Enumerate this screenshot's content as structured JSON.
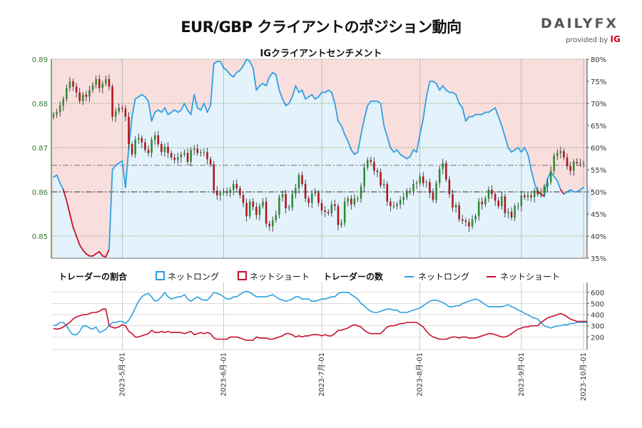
{
  "header": {
    "title": "EUR/GBP クライアントのポジション動向",
    "subtitle": "IGクライアントセンチメント",
    "brand": "DAILY",
    "brand_fx": "FX",
    "brand_sub": "provided by",
    "brand_ig": "IG"
  },
  "legend": {
    "ratio_title": "トレーダーの割合",
    "ratio_long": "ネットロング",
    "ratio_short": "ネットショート",
    "count_title": "トレーダーの数",
    "count_long": "ネットロング",
    "count_short": "ネットショート"
  },
  "colors": {
    "long": "#2f9fe0",
    "short": "#c8102e",
    "bull": "#2e8b2e",
    "bear": "#b1121c",
    "long_fill": "#e3f2fb",
    "short_fill": "#f9dede",
    "grid": "#3a8a3a"
  },
  "chart_data": [
    {
      "type": "candlestick",
      "title": "IGクライアントセンチメント",
      "y_left": {
        "min": 0.845,
        "max": 0.89,
        "ticks": [
          "0.89",
          "0.88",
          "0.87",
          "0.86",
          "0.85"
        ],
        "tick_values": [
          0.89,
          0.88,
          0.87,
          0.86,
          0.85
        ]
      },
      "y_right": {
        "min": 35,
        "max": 80,
        "ticks": [
          "80%",
          "75%",
          "70%",
          "65%",
          "60%",
          "55%",
          "50%",
          "45%",
          "40%",
          "35%"
        ],
        "tick_values": [
          80,
          75,
          70,
          65,
          60,
          55,
          50,
          45,
          40,
          35
        ]
      },
      "price_closes": [
        0.8775,
        0.878,
        0.8795,
        0.881,
        0.8835,
        0.885,
        0.8838,
        0.8825,
        0.8805,
        0.882,
        0.8815,
        0.883,
        0.8842,
        0.8855,
        0.8835,
        0.8845,
        0.8855,
        0.8838,
        0.877,
        0.8782,
        0.879,
        0.8788,
        0.877,
        0.8708,
        0.8685,
        0.8718,
        0.8722,
        0.8712,
        0.8695,
        0.8688,
        0.8718,
        0.8728,
        0.8708,
        0.869,
        0.8702,
        0.8688,
        0.8678,
        0.8672,
        0.8678,
        0.8685,
        0.8688,
        0.8668,
        0.8695,
        0.8698,
        0.8688,
        0.869,
        0.869,
        0.8674,
        0.8662,
        0.8603,
        0.8592,
        0.8598,
        0.86,
        0.8598,
        0.8605,
        0.8618,
        0.8608,
        0.8593,
        0.8575,
        0.8545,
        0.8578,
        0.8566,
        0.8548,
        0.8568,
        0.8578,
        0.8528,
        0.8522,
        0.8536,
        0.8548,
        0.8588,
        0.8595,
        0.8563,
        0.8565,
        0.8595,
        0.8608,
        0.8638,
        0.8618,
        0.8585,
        0.8575,
        0.8596,
        0.8598,
        0.8575,
        0.8558,
        0.8555,
        0.8552,
        0.8572,
        0.8568,
        0.8525,
        0.853,
        0.8578,
        0.8585,
        0.8572,
        0.8585,
        0.8585,
        0.8612,
        0.8655,
        0.8672,
        0.8668,
        0.8648,
        0.8645,
        0.8615,
        0.8618,
        0.8578,
        0.8568,
        0.8568,
        0.8572,
        0.8582,
        0.8588,
        0.8602,
        0.8602,
        0.8618,
        0.862,
        0.8635,
        0.862,
        0.8622,
        0.8598,
        0.8582,
        0.862,
        0.8652,
        0.8665,
        0.8628,
        0.8595,
        0.8565,
        0.857,
        0.8538,
        0.8535,
        0.8532,
        0.8522,
        0.8538,
        0.8545,
        0.8578,
        0.8572,
        0.8585,
        0.8605,
        0.8595,
        0.858,
        0.8568,
        0.859,
        0.8552,
        0.8555,
        0.8542,
        0.8568,
        0.8568,
        0.8592,
        0.8588,
        0.8592,
        0.8588,
        0.8603,
        0.8595,
        0.8598,
        0.8612,
        0.8622,
        0.8648,
        0.8682,
        0.8688,
        0.8692,
        0.8678,
        0.8658,
        0.8648,
        0.8668,
        0.8665,
        0.8665,
        0.8665
      ],
      "sentiment_long_pct": [
        53.3,
        53.8,
        52,
        50.5,
        48,
        45,
        42,
        40,
        38,
        36.8,
        36,
        35.5,
        35.5,
        36,
        36.5,
        35.5,
        35.3,
        37,
        55,
        56,
        56.5,
        57,
        51,
        60,
        67,
        71,
        71.5,
        72,
        71.5,
        70.5,
        66,
        68,
        68.5,
        68,
        69,
        67.5,
        68,
        68.5,
        68,
        68.5,
        70,
        68.5,
        67.5,
        72,
        69,
        68.5,
        70,
        68,
        69.5,
        79,
        79.5,
        79.5,
        78,
        77.5,
        76.5,
        76,
        77,
        77.5,
        78.5,
        80,
        79.5,
        78,
        73,
        74,
        74.5,
        74,
        76,
        77,
        76.5,
        73,
        71,
        69.5,
        70,
        71.5,
        74,
        72.5,
        73,
        71,
        71.5,
        72,
        71,
        71.5,
        72.5,
        72.5,
        73,
        72.5,
        70,
        66,
        65,
        63,
        61.5,
        59.5,
        58.5,
        59,
        63,
        66.5,
        69.5,
        70.5,
        70.5,
        70.5,
        70,
        65,
        62.5,
        60,
        59,
        59.5,
        58.5,
        58,
        57.5,
        58,
        59.5,
        59,
        63,
        66.5,
        71.5,
        75,
        75,
        74.5,
        73,
        74,
        73,
        72.5,
        72.5,
        72,
        70,
        69,
        66,
        67,
        67,
        67.5,
        67.5,
        67.5,
        68,
        68,
        68.5,
        69,
        67,
        65,
        62.5,
        60,
        59,
        59.5,
        60,
        59,
        60,
        58.5,
        55,
        52,
        50,
        49.5,
        49,
        53,
        54.5,
        53.5,
        52.5,
        50.5,
        49.5,
        50,
        50.5,
        50,
        50,
        50.5,
        51,
        51,
        51,
        51
      ],
      "reference_lines": {
        "price_dashed": 0.866,
        "sentiment_50": 50
      },
      "x_ticks": [
        "2023-5月-01",
        "2023-6月-01",
        "2023-7月-01",
        "2023-8月-01",
        "2023-9月-01",
        "2023-10月-01"
      ]
    },
    {
      "type": "line",
      "title": "トレーダーの数",
      "y_right": {
        "min": 100,
        "max": 650,
        "ticks": [
          "600",
          "500",
          "400",
          "300",
          "200"
        ],
        "tick_values": [
          600,
          500,
          400,
          300,
          200
        ]
      },
      "series": [
        {
          "name": "ネットロング",
          "values": [
            300,
            310,
            330,
            330,
            300,
            250,
            220,
            220,
            250,
            300,
            300,
            280,
            270,
            290,
            240,
            250,
            270,
            300,
            330,
            330,
            340,
            340,
            320,
            350,
            400,
            460,
            520,
            560,
            580,
            590,
            560,
            520,
            530,
            560,
            600,
            560,
            540,
            550,
            560,
            560,
            580,
            540,
            520,
            540,
            560,
            540,
            530,
            530,
            560,
            600,
            590,
            580,
            560,
            540,
            540,
            560,
            560,
            580,
            600,
            610,
            600,
            580,
            560,
            560,
            560,
            560,
            570,
            580,
            560,
            540,
            530,
            520,
            530,
            540,
            560,
            560,
            540,
            540,
            540,
            520,
            520,
            530,
            540,
            540,
            550,
            560,
            560,
            590,
            600,
            600,
            600,
            580,
            560,
            540,
            500,
            480,
            450,
            430,
            420,
            420,
            430,
            440,
            450,
            450,
            440,
            440,
            420,
            420,
            420,
            430,
            440,
            450,
            460,
            480,
            500,
            520,
            530,
            530,
            520,
            510,
            490,
            470,
            470,
            480,
            480,
            500,
            510,
            520,
            530,
            540,
            530,
            510,
            490,
            470,
            470,
            470,
            470,
            470,
            480,
            490,
            470,
            460,
            440,
            430,
            410,
            400,
            380,
            370,
            360,
            330,
            300,
            290,
            280,
            290,
            300,
            300,
            310,
            310,
            320,
            320,
            330,
            330,
            330,
            330
          ]
        },
        {
          "name": "ネットショート",
          "values": [
            275,
            270,
            275,
            290,
            310,
            330,
            360,
            380,
            390,
            400,
            400,
            410,
            420,
            420,
            430,
            450,
            450,
            300,
            285,
            280,
            290,
            310,
            300,
            250,
            230,
            200,
            200,
            210,
            220,
            230,
            260,
            240,
            240,
            250,
            240,
            250,
            240,
            240,
            240,
            240,
            230,
            240,
            250,
            220,
            230,
            240,
            230,
            240,
            230,
            190,
            180,
            180,
            180,
            180,
            200,
            200,
            200,
            190,
            180,
            170,
            170,
            170,
            200,
            190,
            190,
            190,
            180,
            180,
            190,
            200,
            210,
            230,
            230,
            220,
            200,
            210,
            200,
            210,
            210,
            220,
            220,
            220,
            210,
            220,
            210,
            210,
            230,
            260,
            260,
            270,
            280,
            300,
            310,
            300,
            290,
            260,
            240,
            230,
            230,
            230,
            230,
            260,
            290,
            300,
            300,
            310,
            320,
            320,
            330,
            330,
            330,
            330,
            310,
            290,
            250,
            220,
            200,
            190,
            180,
            180,
            180,
            190,
            200,
            200,
            190,
            200,
            200,
            190,
            190,
            190,
            200,
            210,
            220,
            230,
            230,
            220,
            210,
            200,
            200,
            210,
            230,
            250,
            270,
            280,
            290,
            290,
            300,
            300,
            300,
            330,
            350,
            370,
            380,
            390,
            400,
            410,
            400,
            380,
            360,
            350,
            340,
            340,
            340,
            340
          ]
        }
      ]
    }
  ]
}
